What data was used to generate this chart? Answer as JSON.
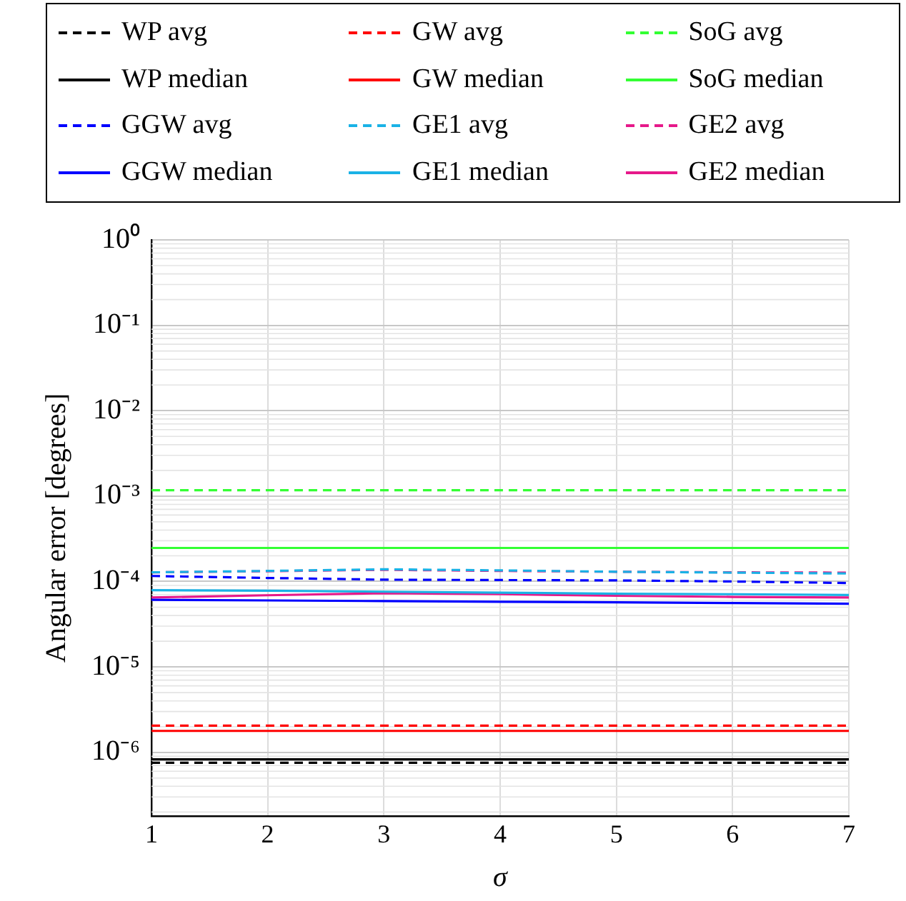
{
  "chart_data": {
    "type": "line",
    "xlabel": "σ",
    "ylabel": "Angular error [degrees]",
    "x": [
      1,
      2,
      3,
      4,
      5,
      6,
      7
    ],
    "xlim": [
      1,
      7
    ],
    "xticks": [
      1,
      2,
      3,
      4,
      5,
      6,
      7
    ],
    "ylim": [
      1.8e-07,
      1
    ],
    "log": "y",
    "yticks": [
      {
        "value": 1e-06,
        "label": "10⁻⁶"
      },
      {
        "value": 1e-05,
        "label": "10⁻⁵"
      },
      {
        "value": 0.0001,
        "label": "10⁻⁴"
      },
      {
        "value": 0.001,
        "label": "10⁻³"
      },
      {
        "value": 0.01,
        "label": "10⁻²"
      },
      {
        "value": 0.1,
        "label": "10⁻¹"
      },
      {
        "value": 1,
        "label": "10⁰"
      }
    ],
    "grid": true,
    "legend": "top",
    "marker": "none",
    "series": [
      {
        "name": "WP avg",
        "color": "#000000",
        "line_style": "dashed",
        "values": [
          7.55e-07,
          7.55e-07,
          7.55e-07,
          7.55e-07,
          7.55e-07,
          7.55e-07,
          7.55e-07
        ]
      },
      {
        "name": "GW avg",
        "color": "#ff0000",
        "line_style": "dashed",
        "values": [
          2.05e-06,
          2.05e-06,
          2.05e-06,
          2.05e-06,
          2.05e-06,
          2.05e-06,
          2.05e-06
        ]
      },
      {
        "name": "SoG avg",
        "color": "#33ff33",
        "line_style": "dashed",
        "values": [
          0.00117,
          0.00117,
          0.00117,
          0.00117,
          0.00117,
          0.00117,
          0.00117
        ]
      },
      {
        "name": "WP median",
        "color": "#000000",
        "line_style": "solid",
        "values": [
          8.25e-07,
          8.25e-07,
          8.25e-07,
          8.25e-07,
          8.25e-07,
          8.25e-07,
          8.25e-07
        ]
      },
      {
        "name": "GW median",
        "color": "#ff0000",
        "line_style": "solid",
        "values": [
          1.78e-06,
          1.78e-06,
          1.78e-06,
          1.78e-06,
          1.78e-06,
          1.78e-06,
          1.78e-06
        ]
      },
      {
        "name": "SoG median",
        "color": "#33ff33",
        "line_style": "solid",
        "values": [
          0.000247,
          0.000247,
          0.000247,
          0.000247,
          0.000247,
          0.000247,
          0.000247
        ]
      },
      {
        "name": "GGW avg",
        "color": "#0000ff",
        "line_style": "dashed",
        "values": [
          0.000116,
          0.00011,
          0.000105,
          0.000104,
          0.000103,
          0.0001,
          9.6e-05
        ]
      },
      {
        "name": "GE1 avg",
        "color": "#1ab2e6",
        "line_style": "dashed",
        "values": [
          0.000128,
          0.000133,
          0.000139,
          0.000135,
          0.00013,
          0.000127,
          0.000124
        ]
      },
      {
        "name": "GE2 avg",
        "color": "#e6198a",
        "line_style": "dashed",
        "values": [
          0.000128,
          0.000132,
          0.000137,
          0.000133,
          0.00013,
          0.000128,
          0.000127
        ]
      },
      {
        "name": "GGW median",
        "color": "#0000ff",
        "line_style": "solid",
        "values": [
          6.1e-05,
          6e-05,
          5.9e-05,
          5.8e-05,
          5.7e-05,
          5.6e-05,
          5.5e-05
        ]
      },
      {
        "name": "GE1 median",
        "color": "#1ab2e6",
        "line_style": "solid",
        "values": [
          7.9e-05,
          7.8e-05,
          7.6e-05,
          7.4e-05,
          7.2e-05,
          7.1e-05,
          6.95e-05
        ]
      },
      {
        "name": "GE2 median",
        "color": "#e6198a",
        "line_style": "solid",
        "values": [
          6.5e-05,
          6.9e-05,
          7.3e-05,
          7.1e-05,
          6.8e-05,
          6.6e-05,
          6.5e-05
        ]
      }
    ]
  }
}
